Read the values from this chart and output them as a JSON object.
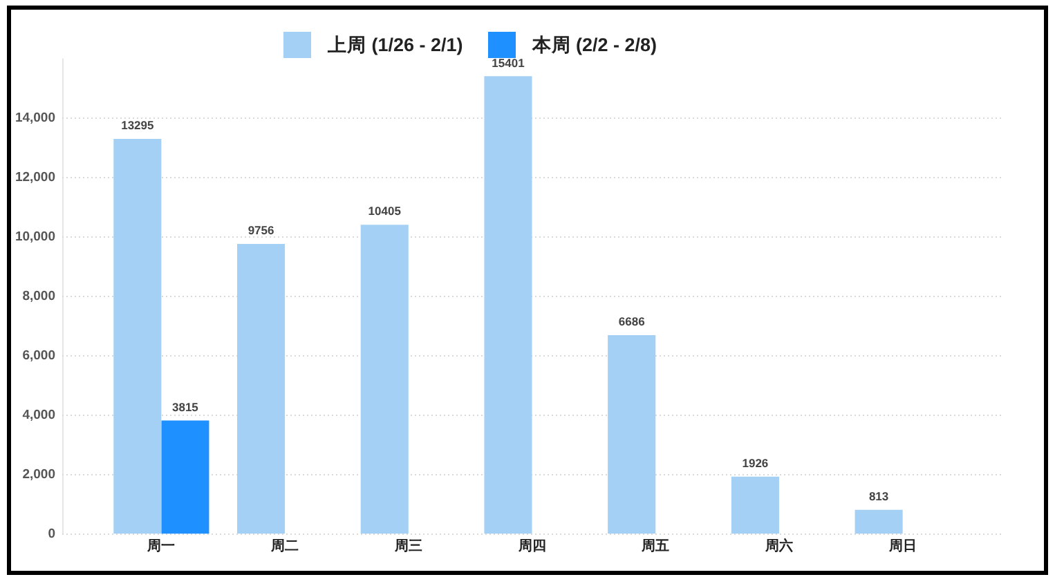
{
  "chart_data": {
    "type": "bar",
    "categories": [
      "周一",
      "周二",
      "周三",
      "周四",
      "周五",
      "周六",
      "周日"
    ],
    "series": [
      {
        "name": "上周 (1/26 - 2/1)",
        "color": "#a3d0f4",
        "values": [
          13295,
          9756,
          10405,
          15401,
          6686,
          1926,
          813
        ]
      },
      {
        "name": "本周 (2/2 - 2/8)",
        "color": "#1e90ff",
        "values": [
          3815,
          null,
          null,
          null,
          null,
          null,
          null
        ]
      }
    ],
    "ylim": [
      0,
      16000
    ],
    "yticks": [
      0,
      {
        "value": 2000,
        "label": "2,000"
      },
      {
        "value": 4000,
        "label": "4,000"
      },
      {
        "value": 6000,
        "label": "6,000"
      },
      {
        "value": 8000,
        "label": "8,000"
      },
      {
        "value": 10000,
        "label": "10,000"
      },
      {
        "value": 12000,
        "label": "12,000"
      },
      {
        "value": 14000,
        "label": "14,000"
      }
    ],
    "grid": "y",
    "legend": "top",
    "data_labels": true
  }
}
